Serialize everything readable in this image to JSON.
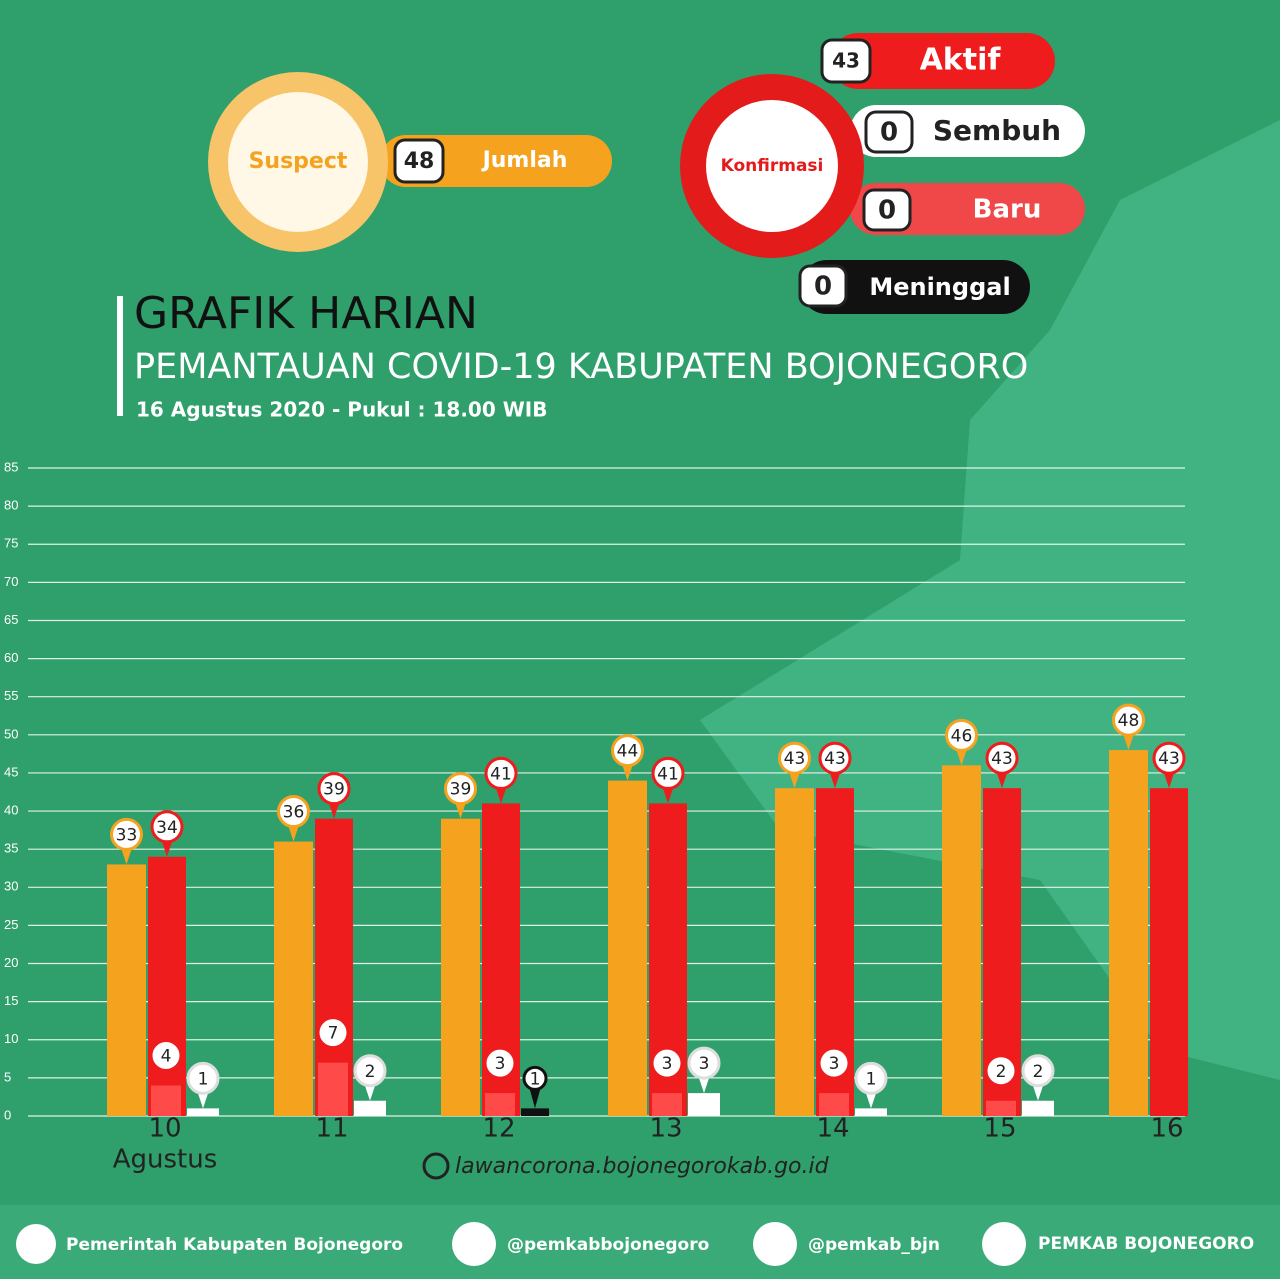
{
  "summary": {
    "suspect_label": "Suspect",
    "suspect_value": 48,
    "suspect_caption": "Jumlah",
    "confirmed_label": "Konfirmasi",
    "active_value": 43,
    "active_caption": "Aktif",
    "recovered_value": 0,
    "recovered_caption": "Sembuh",
    "new_value": 0,
    "new_caption": "Baru",
    "deaths_value": 0,
    "deaths_caption": "Meninggal"
  },
  "chart_data": {
    "type": "bar",
    "title": "GRAFIK HARIAN",
    "subtitle": "PEMANTAUAN COVID-19 KABUPATEN BOJONEGORO",
    "date": "16 Agustus 2020 - Pukul : 18.00 WIB",
    "categories": [
      "10",
      "11",
      "12",
      "13",
      "14",
      "15",
      "16"
    ],
    "x_title": "Agustus",
    "series": [
      {
        "color": "#f5a21f",
        "values": [
          33,
          36,
          39,
          44,
          43,
          46,
          48
        ]
      },
      {
        "color": "#ee1c1c",
        "values": [
          34,
          39,
          41,
          41,
          43,
          43,
          43
        ]
      },
      {
        "color": "#ff4a4a",
        "values": [
          4,
          7,
          3,
          3,
          3,
          2,
          null
        ]
      },
      {
        "color": "#ffffff",
        "values": [
          1,
          2,
          null,
          3,
          1,
          2,
          null
        ]
      },
      {
        "color": "#111111",
        "values": [
          null,
          null,
          1,
          null,
          null,
          null,
          null
        ]
      }
    ],
    "ylim": [
      0,
      85
    ],
    "yticks": [
      0,
      5,
      10,
      15,
      20,
      25,
      30,
      35,
      40,
      45,
      50,
      55,
      60,
      65,
      70,
      75,
      80,
      85
    ],
    "grid": true
  },
  "website": "lawancorona.bojonegorokab.go.id",
  "footer": [
    "Pemerintah Kabupaten Bojonegoro",
    "@pemkabbojonegoro",
    "@pemkab_bjn",
    "PEMKAB BOJONEGORO"
  ]
}
